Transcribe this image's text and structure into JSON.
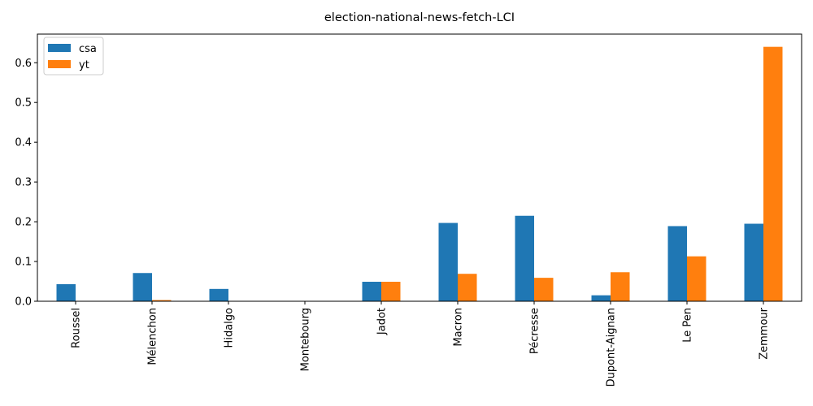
{
  "chart_data": {
    "type": "bar",
    "title": "election-national-news-fetch-LCI",
    "xlabel": "",
    "ylabel": "",
    "categories": [
      "Roussel",
      "Mélenchon",
      "Hidalgo",
      "Montebourg",
      "Jadot",
      "Macron",
      "Pécresse",
      "Dupont-Aignan",
      "Le Pen",
      "Zemmour"
    ],
    "series": [
      {
        "name": "csa",
        "color": "#1f77b4",
        "values": [
          0.043,
          0.071,
          0.031,
          0.0,
          0.049,
          0.197,
          0.215,
          0.015,
          0.189,
          0.195
        ]
      },
      {
        "name": "yt",
        "color": "#ff7f0e",
        "values": [
          0.0,
          0.003,
          0.0,
          0.0,
          0.049,
          0.069,
          0.059,
          0.073,
          0.113,
          0.64
        ]
      }
    ],
    "ylim": [
      0,
      0.672
    ],
    "yticks": [
      0.0,
      0.1,
      0.2,
      0.3,
      0.4,
      0.5,
      0.6
    ],
    "ytick_labels": [
      "0.0",
      "0.1",
      "0.2",
      "0.3",
      "0.4",
      "0.5",
      "0.6"
    ],
    "legend_position": "top-left",
    "grid": false
  }
}
